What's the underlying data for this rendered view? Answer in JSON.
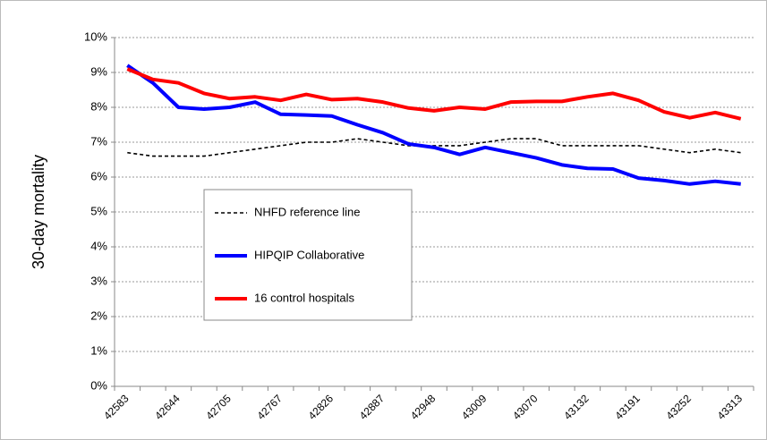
{
  "chart_data": {
    "type": "line",
    "y_label": "30-day mortality",
    "categories": [
      "42583",
      null,
      "42644",
      null,
      "42705",
      null,
      "42767",
      null,
      "42826",
      null,
      "42887",
      null,
      "42948",
      null,
      "43009",
      null,
      "43070",
      null,
      "43132",
      null,
      "43191",
      null,
      "43252",
      null,
      "43313"
    ],
    "series": [
      {
        "name": "NHFD reference line",
        "color": "#000000",
        "dash": true,
        "values": [
          6.7,
          6.6,
          6.6,
          6.6,
          6.7,
          6.8,
          6.9,
          7.0,
          7.0,
          7.1,
          7.0,
          6.9,
          6.9,
          6.9,
          7.0,
          7.1,
          7.1,
          6.9,
          6.9,
          6.9,
          6.9,
          6.8,
          6.7,
          6.8,
          6.7
        ]
      },
      {
        "name": "HIPQIP Collaborative",
        "color": "#0000ff",
        "values": [
          9.2,
          8.7,
          8.0,
          7.95,
          8.0,
          8.15,
          7.8,
          7.78,
          7.75,
          7.5,
          7.27,
          6.95,
          6.85,
          6.65,
          6.85,
          6.7,
          6.55,
          6.35,
          6.25,
          6.23,
          5.97,
          5.9,
          5.8,
          5.88,
          5.8
        ]
      },
      {
        "name": "16 control hospitals",
        "color": "#ff0000",
        "values": [
          9.1,
          8.8,
          8.7,
          8.4,
          8.25,
          8.3,
          8.2,
          8.37,
          8.22,
          8.25,
          8.15,
          7.98,
          7.9,
          8.0,
          7.95,
          8.15,
          8.17,
          8.17,
          8.3,
          8.4,
          8.2,
          7.87,
          7.7,
          7.85,
          7.67
        ]
      }
    ],
    "ylim": [
      0,
      10
    ],
    "yticks": [
      {
        "value": 0,
        "label": "0%"
      },
      {
        "value": 1,
        "label": "1%"
      },
      {
        "value": 2,
        "label": "2%"
      },
      {
        "value": 3,
        "label": "3%"
      },
      {
        "value": 4,
        "label": "4%"
      },
      {
        "value": 5,
        "label": "5%"
      },
      {
        "value": 6,
        "label": "6%"
      },
      {
        "value": 7,
        "label": "7%"
      },
      {
        "value": 8,
        "label": "8%"
      },
      {
        "value": 9,
        "label": "9%"
      },
      {
        "value": 10,
        "label": "10%"
      }
    ],
    "grid": true
  }
}
